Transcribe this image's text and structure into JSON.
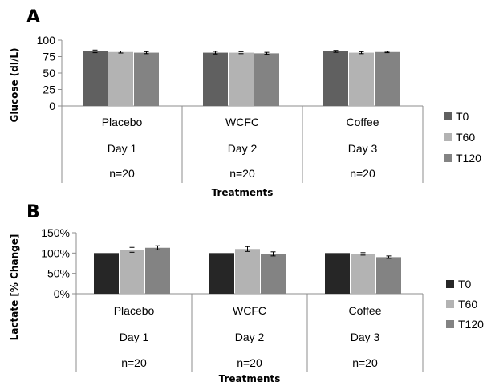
{
  "chart_data": [
    {
      "panel": "A",
      "type": "bar",
      "categories": [
        "Placebo",
        "WCFC",
        "Coffee"
      ],
      "category_rows": [
        [
          "Placebo",
          "WCFC",
          "Coffee"
        ],
        [
          "Day 1",
          "Day 2",
          "Day 3"
        ],
        [
          "n=20",
          "n=20",
          "n=20"
        ]
      ],
      "series": [
        {
          "name": "T0",
          "color": "#606060",
          "values": [
            83,
            81,
            83
          ],
          "errors": [
            2,
            2,
            1.5
          ]
        },
        {
          "name": "T60",
          "color": "#b3b3b3",
          "values": [
            82,
            81,
            81
          ],
          "errors": [
            1.5,
            1.5,
            1.5
          ]
        },
        {
          "name": "T120",
          "color": "#838383",
          "values": [
            81,
            80,
            82
          ],
          "errors": [
            1.5,
            1.5,
            1
          ]
        }
      ],
      "ylabel": "Glucose (dl/L)",
      "xlabel": "Treatments",
      "ylim": [
        0,
        100
      ],
      "yticks": [
        "0",
        "25",
        "50",
        "75",
        "100"
      ],
      "ytick_values": [
        0,
        25,
        50,
        75,
        100
      ],
      "gridlines": false,
      "legend_position": "right"
    },
    {
      "panel": "B",
      "type": "bar",
      "categories": [
        "Placebo",
        "WCFC",
        "Coffee"
      ],
      "category_rows": [
        [
          "Placebo",
          "WCFC",
          "Coffee"
        ],
        [
          "Day 1",
          "Day 2",
          "Day 3"
        ],
        [
          "n=20",
          "n=20",
          "n=20"
        ]
      ],
      "series": [
        {
          "name": "T0",
          "color": "#262626",
          "values": [
            100,
            100,
            100
          ],
          "errors": [
            0,
            0,
            0
          ]
        },
        {
          "name": "T60",
          "color": "#b3b3b3",
          "values": [
            108,
            110,
            98
          ],
          "errors": [
            6,
            6,
            3
          ]
        },
        {
          "name": "T120",
          "color": "#838383",
          "values": [
            113,
            98,
            90
          ],
          "errors": [
            5,
            5,
            3
          ]
        }
      ],
      "ylabel": "Lactate [% Change]",
      "xlabel": "Treatments",
      "ylim": [
        0,
        150
      ],
      "yticks": [
        "0%",
        "50%",
        "100%",
        "150%"
      ],
      "ytick_values": [
        0,
        50,
        100,
        150
      ],
      "gridlines": false,
      "legend_position": "right"
    }
  ]
}
